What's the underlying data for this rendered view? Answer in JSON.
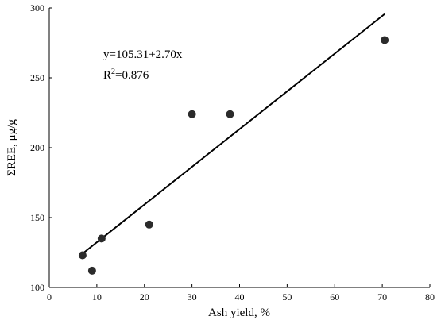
{
  "chart_data": {
    "type": "scatter",
    "xlabel": "Ash yield, %",
    "ylabel": "ΣREE, μg/g",
    "xlim": [
      0,
      80
    ],
    "ylim": [
      100,
      300
    ],
    "xticks": [
      0,
      10,
      20,
      30,
      40,
      50,
      60,
      70,
      80
    ],
    "yticks": [
      100,
      150,
      200,
      250,
      300
    ],
    "grid": false,
    "points": [
      {
        "x": 7,
        "y": 123
      },
      {
        "x": 9,
        "y": 112
      },
      {
        "x": 11,
        "y": 135
      },
      {
        "x": 21,
        "y": 145
      },
      {
        "x": 30,
        "y": 224
      },
      {
        "x": 38,
        "y": 224
      },
      {
        "x": 70.5,
        "y": 277
      }
    ],
    "fit": {
      "intercept": 105.31,
      "slope": 2.7,
      "x_range": [
        7,
        70.5
      ],
      "equation": "y=105.31+2.70x",
      "r2_prefix": "R",
      "r2_sup": "2",
      "r2_value": "=0.876"
    }
  }
}
